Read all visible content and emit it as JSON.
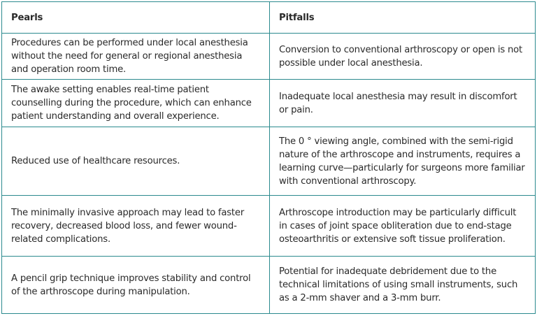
{
  "headers": [
    "Pearls",
    "Pitfalls"
  ],
  "rows": [
    {
      "pearl": "Procedures can be performed under local anesthesia without the need for general or regional anesthesia and operation room time.",
      "pitfall": "Conversion to conventional arthroscopy or open is not possible under local anesthesia."
    },
    {
      "pearl": "The awake setting enables real-time patient counselling during the procedure, which can enhance patient understanding and overall experience.",
      "pitfall": "Inadequate local anesthesia may result in discomfort or pain."
    },
    {
      "pearl": "Reduced use of healthcare resources.",
      "pitfall": "The 0 ° viewing angle, combined with the semi-rigid nature of the arthroscope and instruments, requires a learning curve—particularly for surgeons more familiar with conventional arthroscopy."
    },
    {
      "pearl": "The minimally invasive approach may lead to faster recovery, decreased blood loss, and fewer wound-related complications.",
      "pitfall": "Arthroscope introduction may be particularly difficult in cases of joint space obliteration due to end-stage osteoarthritis or extensive soft tissue proliferation."
    },
    {
      "pearl": "A pencil grip technique improves stability and control of the arthroscope during manipulation.",
      "pitfall": "Potential for inadequate debridement due to the technical limitations of using small instruments, such as a 2-mm shaver and a 3-mm burr."
    }
  ],
  "colors": {
    "border": "#2b8a8e",
    "text": "#2a2a2a"
  }
}
